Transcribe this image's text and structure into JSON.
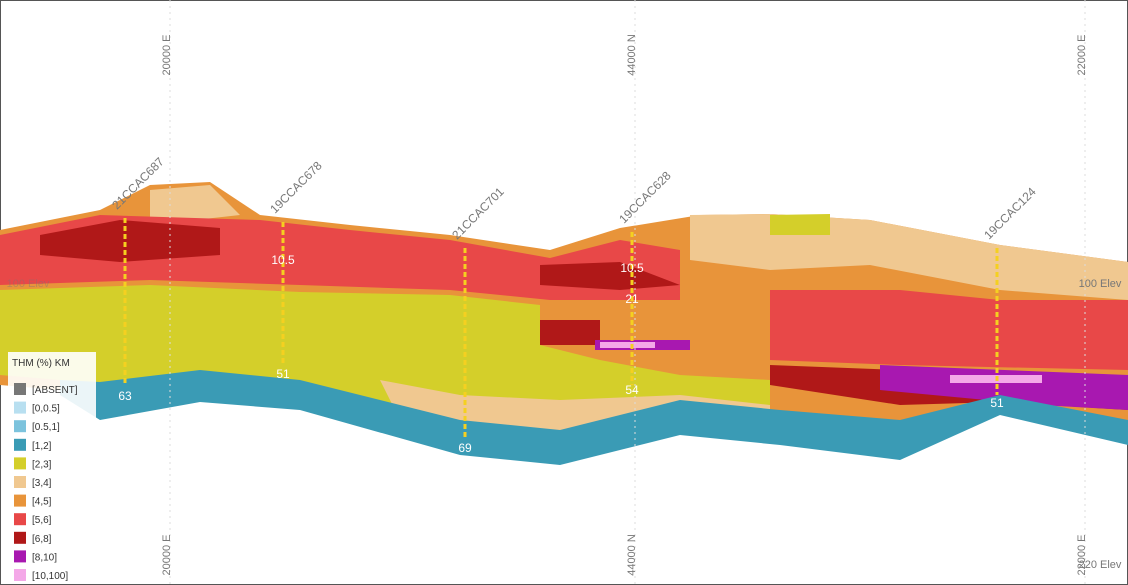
{
  "axis_labels": {
    "top": [
      "20000 E",
      "44000 N",
      "22000 E"
    ],
    "bottom": [
      "20000 E",
      "44000 N",
      "22000 E"
    ],
    "elevation": [
      "100 Elev",
      "100 Elev",
      "220 Elev"
    ]
  },
  "drillholes": [
    {
      "label": "21CCAC687",
      "values": [
        "63"
      ]
    },
    {
      "label": "19CCAC678",
      "values": [
        "10.5",
        "51"
      ]
    },
    {
      "label": "21CCAC701",
      "values": [
        "69"
      ]
    },
    {
      "label": "19CCAC628",
      "values": [
        "10.5",
        "21",
        "54"
      ]
    },
    {
      "label": "19CCAC124",
      "values": [
        "51"
      ]
    }
  ],
  "legend": {
    "title": "THM (%) KM",
    "items": [
      {
        "label": "[ABSENT]",
        "color": "#777777"
      },
      {
        "label": "[0,0.5]",
        "color": "#b8dff0"
      },
      {
        "label": "[0.5,1]",
        "color": "#7cc3dd"
      },
      {
        "label": "[1,2]",
        "color": "#3a9bb5"
      },
      {
        "label": "[2,3]",
        "color": "#d4cf2a"
      },
      {
        "label": "[3,4]",
        "color": "#f0c890"
      },
      {
        "label": "[4,5]",
        "color": "#e8943a"
      },
      {
        "label": "[5,6]",
        "color": "#e84848"
      },
      {
        "label": "[6,8]",
        "color": "#b01818"
      },
      {
        "label": "[8,10]",
        "color": "#a818b0"
      },
      {
        "label": "[10,100]",
        "color": "#f4a8e8"
      }
    ]
  }
}
